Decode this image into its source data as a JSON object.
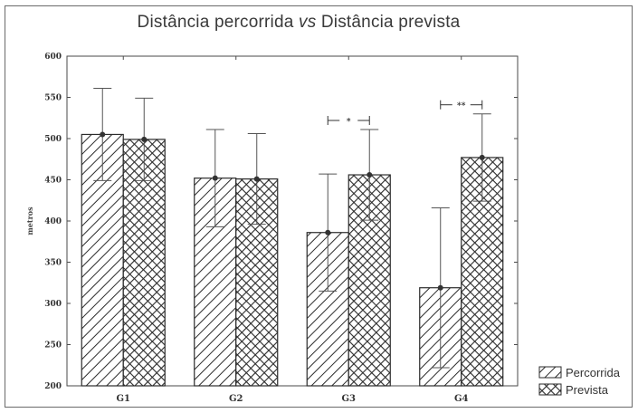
{
  "chart_data": {
    "type": "bar",
    "title_main": "Distância percorrida ",
    "title_vs": "vs",
    "title_rest": " Distância prevista",
    "ylabel": "metros",
    "xlabel": "",
    "ylim": [
      200,
      600
    ],
    "yticks": [
      200,
      250,
      300,
      350,
      400,
      450,
      500,
      550,
      600
    ],
    "categories": [
      "G1",
      "G2",
      "G3",
      "G4"
    ],
    "series": [
      {
        "name": "Percorrida",
        "pattern": "diagonal-hatch",
        "values": [
          505,
          452,
          386,
          319
        ],
        "errors": [
          56,
          59,
          71,
          97
        ]
      },
      {
        "name": "Prevista",
        "pattern": "cross-hatch",
        "values": [
          499,
          451,
          456,
          477
        ],
        "errors": [
          50,
          55,
          55,
          53
        ]
      }
    ],
    "significance": [
      {
        "category": "G3",
        "label": "*"
      },
      {
        "category": "G4",
        "label": "**"
      }
    ],
    "legend": {
      "placement": "bottom-right"
    },
    "grid": false
  }
}
